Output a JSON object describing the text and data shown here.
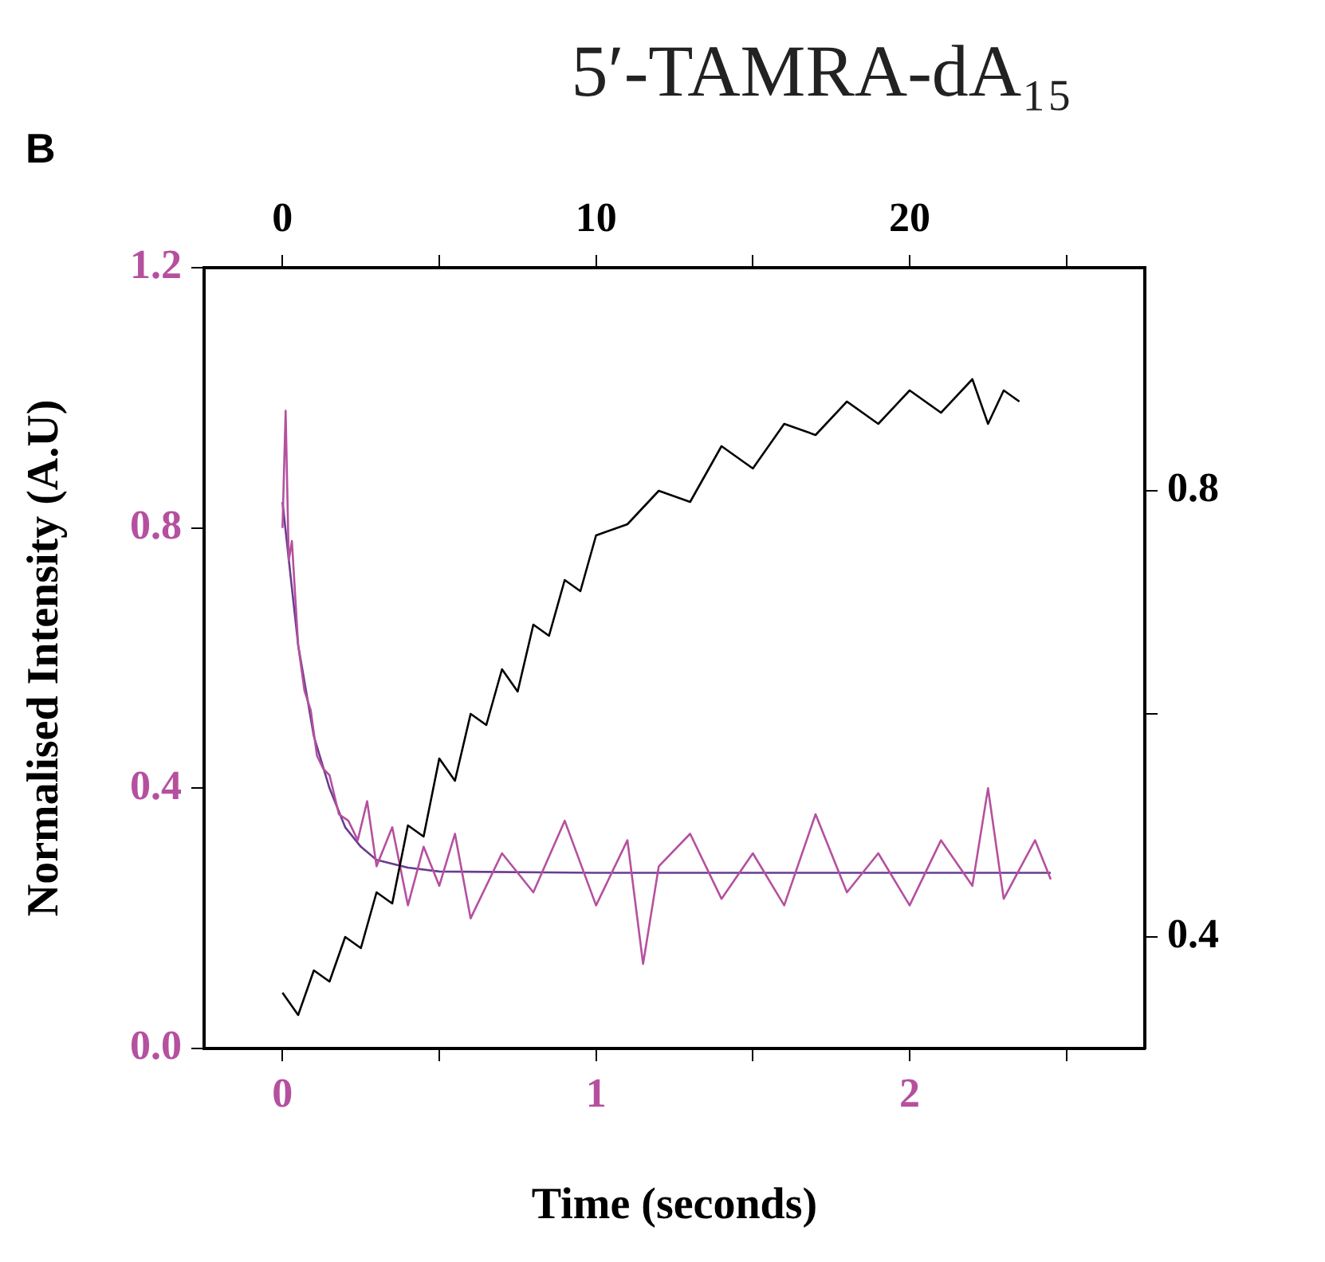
{
  "chart_data": [
    {
      "type": "line",
      "title": "5′-TAMRA-dA₁₅",
      "xlabel": "Time (seconds)",
      "ylabel": "Normalised Intensity (A.U)",
      "annotations": [
        "B"
      ],
      "xlim": [
        -0.25,
        2.75
      ],
      "xticks": [
        0,
        {
          "value": 0.5,
          "label": null
        },
        1,
        {
          "value": 1.5,
          "label": null
        },
        2,
        {
          "value": 2.5,
          "label": null
        }
      ],
      "ylim": [
        0,
        1.2
      ],
      "yticks": [
        {
          "value": 0,
          "label": "0.0"
        },
        0.4,
        0.8,
        1.2
      ],
      "grid": false,
      "legend": false,
      "marker": "none",
      "line_style": "solid",
      "series": [
        {
          "color": "#b5509f",
          "x": [
            0,
            0.01,
            0.02,
            0.03,
            0.05,
            0.07,
            0.09,
            0.11,
            0.13,
            0.15,
            0.18,
            0.21,
            0.24,
            0.27,
            0.3,
            0.35,
            0.4,
            0.45,
            0.5,
            0.55,
            0.6,
            0.7,
            0.8,
            0.9,
            1.0,
            1.1,
            1.15,
            1.2,
            1.3,
            1.4,
            1.5,
            1.6,
            1.7,
            1.8,
            1.9,
            2.0,
            2.1,
            2.2,
            2.25,
            2.3,
            2.4,
            2.45
          ],
          "values": [
            0.8,
            0.98,
            0.75,
            0.78,
            0.62,
            0.55,
            0.52,
            0.45,
            0.43,
            0.42,
            0.36,
            0.35,
            0.32,
            0.38,
            0.28,
            0.34,
            0.22,
            0.31,
            0.25,
            0.33,
            0.2,
            0.3,
            0.24,
            0.35,
            0.22,
            0.32,
            0.13,
            0.28,
            0.33,
            0.23,
            0.3,
            0.22,
            0.36,
            0.24,
            0.3,
            0.22,
            0.32,
            0.25,
            0.4,
            0.23,
            0.32,
            0.26
          ]
        },
        {
          "color": "#6a3d8f",
          "x": [
            0,
            0.05,
            0.1,
            0.15,
            0.2,
            0.25,
            0.3,
            0.4,
            0.5,
            1.0,
            2.45
          ],
          "values": [
            0.84,
            0.62,
            0.48,
            0.4,
            0.34,
            0.31,
            0.29,
            0.278,
            0.272,
            0.27,
            0.27
          ]
        }
      ]
    },
    {
      "type": "line",
      "xlim": [
        -2.5,
        27.5
      ],
      "xticks": [
        0,
        {
          "value": 5,
          "label": null
        },
        10,
        {
          "value": 15,
          "label": null
        },
        20,
        {
          "value": 25,
          "label": null
        }
      ],
      "ylim": [
        0.3,
        1.0
      ],
      "yticks": [
        0.4,
        {
          "value": 0.6,
          "label": null
        },
        0.8
      ],
      "grid": false,
      "legend": false,
      "marker": "none",
      "line_style": "solid",
      "series": [
        {
          "color": "#000000",
          "x": [
            0,
            0.5,
            1,
            1.5,
            2,
            2.5,
            3,
            3.5,
            4,
            4.5,
            5,
            5.5,
            6,
            6.5,
            7,
            7.5,
            8,
            8.5,
            9,
            9.5,
            10,
            11,
            12,
            13,
            14,
            15,
            16,
            17,
            18,
            19,
            20,
            21,
            22,
            22.5,
            23,
            23.5
          ],
          "values": [
            0.35,
            0.33,
            0.37,
            0.36,
            0.4,
            0.39,
            0.44,
            0.43,
            0.5,
            0.49,
            0.56,
            0.54,
            0.6,
            0.59,
            0.64,
            0.62,
            0.68,
            0.67,
            0.72,
            0.71,
            0.76,
            0.77,
            0.8,
            0.79,
            0.84,
            0.82,
            0.86,
            0.85,
            0.88,
            0.86,
            0.89,
            0.87,
            0.9,
            0.86,
            0.89,
            0.88
          ]
        }
      ]
    }
  ]
}
